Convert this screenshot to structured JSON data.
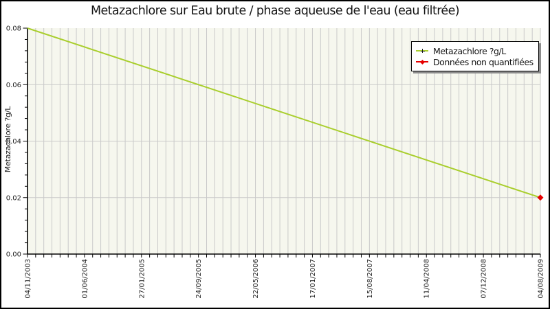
{
  "title": "Metazachlore sur Eau brute / phase aqueuse de l'eau (eau filtrée)",
  "y_axis_title": "Metazachlore ?g/L",
  "legend": {
    "items": [
      {
        "label": "Metazachlore ?g/L",
        "marker": "plus-on-line",
        "color": "#a9ce2d"
      },
      {
        "label": "Données non quantifiées",
        "marker": "diamond-on-line",
        "color": "#e60000"
      }
    ]
  },
  "colors": {
    "series_line": "#a9ce2d",
    "non_quantified_marker": "#e60000",
    "grid": "#c9c9c9",
    "plot_background": "#f6f7ee",
    "axis": "#000000",
    "tick_text": "#1c1c1c"
  },
  "chart_data": {
    "type": "line",
    "title": "Metazachlore sur Eau brute / phase aqueuse de l'eau (eau filtrée)",
    "xlabel": "",
    "ylabel": "Metazachlore ?g/L",
    "ylim": [
      0,
      0.08
    ],
    "y_major_step": 0.02,
    "y_minor_step": 0.004,
    "y_tick_labels": [
      "0.00",
      "0.02",
      "0.04",
      "0.06",
      "0.08"
    ],
    "x_tick_labels": [
      "04/11/2003",
      "01/06/2004",
      "27/01/2005",
      "24/09/2005",
      "22/05/2006",
      "17/01/2007",
      "15/08/2007",
      "11/04/2008",
      "07/12/2008",
      "04/08/2009"
    ],
    "x_minor_intervals": 63,
    "x_minor_ticks_per_label": 7,
    "grid": "vertical minor gridlines + horizontal major gridlines",
    "legend_position": "top-right",
    "series": [
      {
        "name": "Metazachlore ?g/L",
        "points": [
          {
            "date": "04/11/2003",
            "value": 0.08
          },
          {
            "date": "04/08/2009",
            "value": 0.02
          }
        ]
      }
    ],
    "non_quantified_points": [
      {
        "date": "04/08/2009",
        "value": 0.02
      }
    ]
  }
}
